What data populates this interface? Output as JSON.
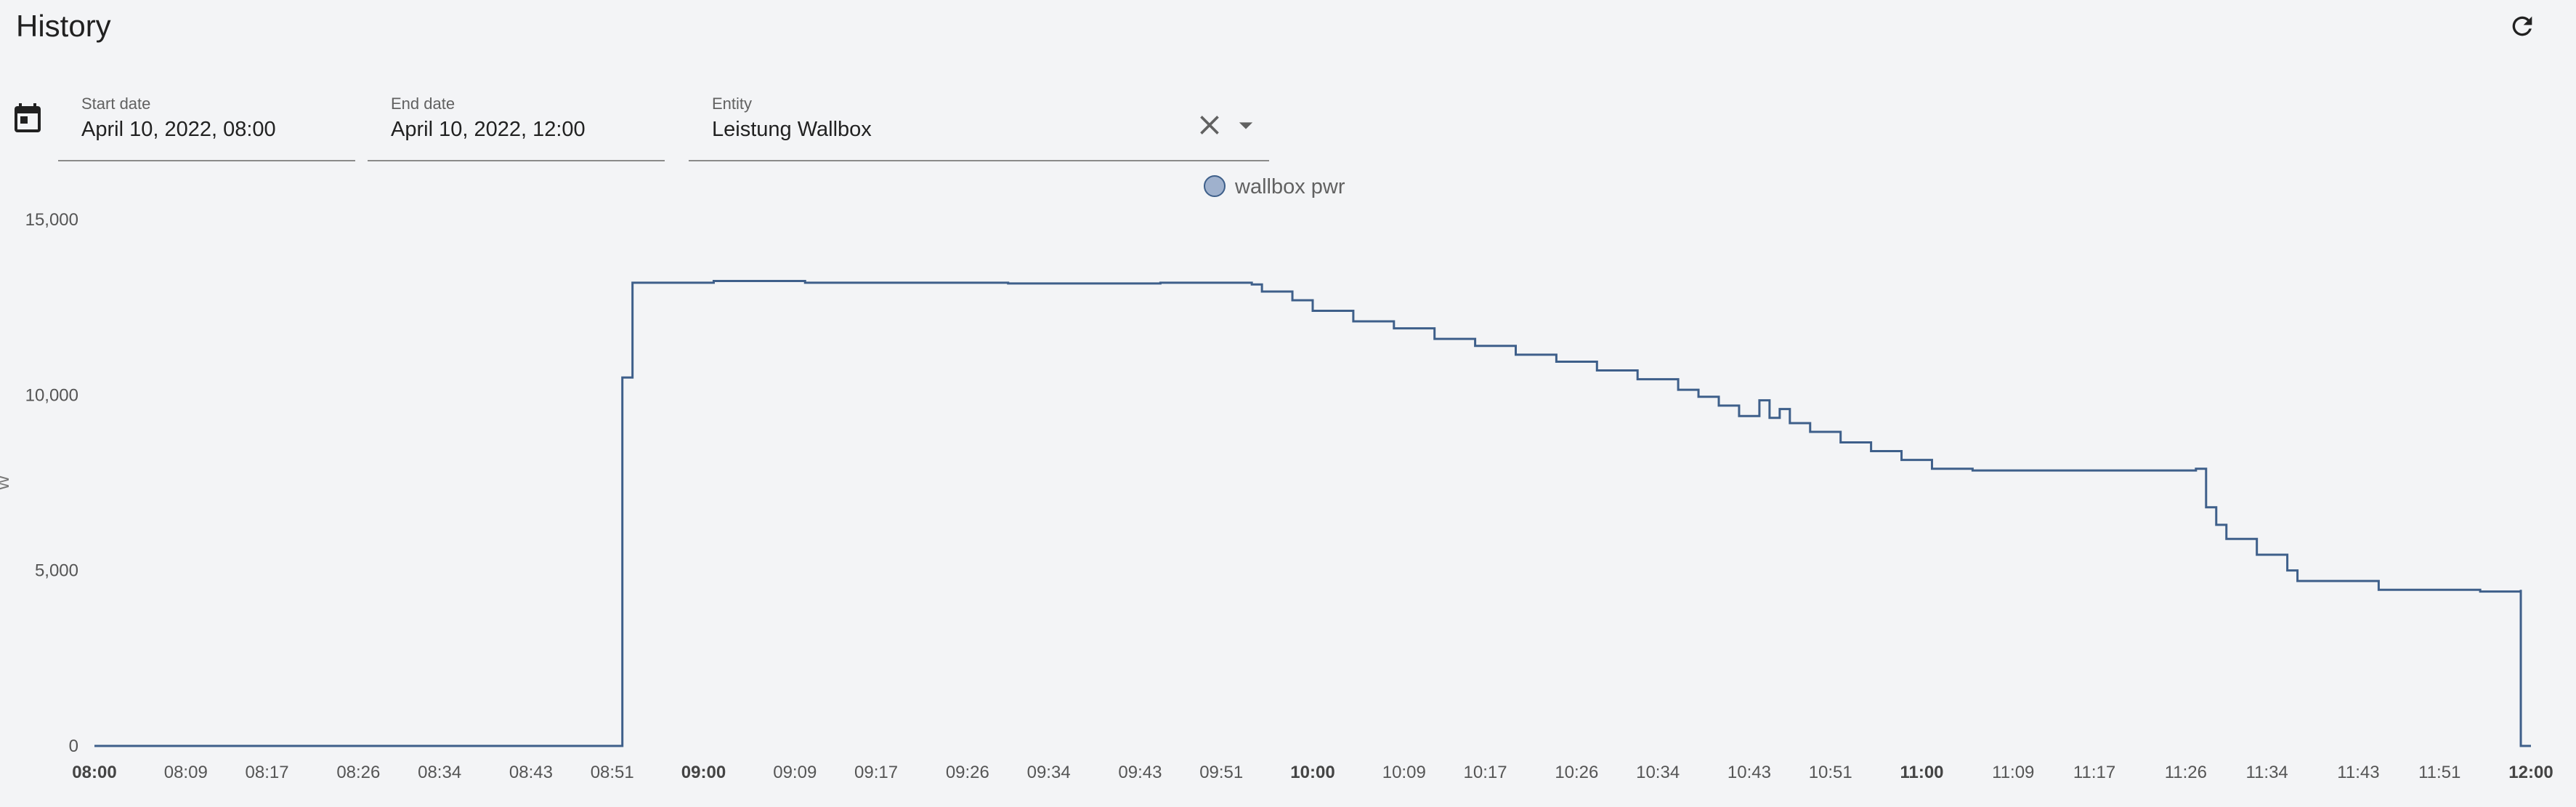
{
  "header": {
    "title": "History"
  },
  "filters": {
    "start_date": {
      "label": "Start date",
      "value": "April 10, 2022, 08:00"
    },
    "end_date": {
      "label": "End date",
      "value": "April 10, 2022, 12:00"
    },
    "entity": {
      "label": "Entity",
      "value": "Leistung Wallbox"
    }
  },
  "icons": {
    "refresh": "refresh-icon",
    "calendar": "calendar-icon",
    "clear": "close-icon",
    "dropdown": "chevron-down-icon"
  },
  "colors": {
    "series": "#3e5f8a",
    "legend_dot_fill": "#9fb1cd",
    "legend_dot_stroke": "#3e5f8a"
  },
  "chart_data": {
    "type": "line",
    "legend": [
      "wallbox pwr"
    ],
    "legend_position": "top-center",
    "ylabel": "W",
    "ylim": [
      0,
      15000
    ],
    "y_ticks": [
      "0",
      "5,000",
      "10,000",
      "15,000"
    ],
    "x_ticks": [
      "08:00",
      "08:09",
      "08:17",
      "08:26",
      "08:34",
      "08:43",
      "08:51",
      "09:00",
      "09:09",
      "09:17",
      "09:26",
      "09:34",
      "09:43",
      "09:51",
      "10:00",
      "10:09",
      "10:17",
      "10:26",
      "10:34",
      "10:43",
      "10:51",
      "11:00",
      "11:09",
      "11:17",
      "11:26",
      "11:34",
      "11:43",
      "11:51",
      "12:00"
    ],
    "x_ticks_bold": [
      "08:00",
      "09:00",
      "10:00",
      "11:00",
      "12:00"
    ],
    "grid": false,
    "step": true,
    "series": [
      {
        "name": "wallbox pwr",
        "points": [
          [
            "08:00",
            0
          ],
          [
            "08:52",
            0
          ],
          [
            "08:52",
            10500
          ],
          [
            "08:53",
            10500
          ],
          [
            "08:53",
            13200
          ],
          [
            "09:00",
            13200
          ],
          [
            "09:01",
            13250
          ],
          [
            "09:10",
            13200
          ],
          [
            "09:30",
            13180
          ],
          [
            "09:45",
            13200
          ],
          [
            "09:53",
            13200
          ],
          [
            "09:54",
            13150
          ],
          [
            "09:55",
            12950
          ],
          [
            "09:58",
            12700
          ],
          [
            "10:00",
            12400
          ],
          [
            "10:04",
            12100
          ],
          [
            "10:08",
            11900
          ],
          [
            "10:12",
            11600
          ],
          [
            "10:16",
            11400
          ],
          [
            "10:20",
            11150
          ],
          [
            "10:24",
            10950
          ],
          [
            "10:28",
            10700
          ],
          [
            "10:32",
            10450
          ],
          [
            "10:36",
            10150
          ],
          [
            "10:38",
            9950
          ],
          [
            "10:40",
            9700
          ],
          [
            "10:42",
            9400
          ],
          [
            "10:44",
            9850
          ],
          [
            "10:45",
            9350
          ],
          [
            "10:46",
            9600
          ],
          [
            "10:47",
            9200
          ],
          [
            "10:49",
            8950
          ],
          [
            "10:52",
            8650
          ],
          [
            "10:55",
            8400
          ],
          [
            "10:58",
            8150
          ],
          [
            "11:01",
            7900
          ],
          [
            "11:05",
            7850
          ],
          [
            "11:20",
            7850
          ],
          [
            "11:27",
            7900
          ],
          [
            "11:28",
            6800
          ],
          [
            "11:29",
            6300
          ],
          [
            "11:30",
            5900
          ],
          [
            "11:33",
            5450
          ],
          [
            "11:36",
            5000
          ],
          [
            "11:37",
            4700
          ],
          [
            "11:45",
            4450
          ],
          [
            "11:55",
            4400
          ],
          [
            "11:59",
            4450
          ],
          [
            "11:59",
            0
          ],
          [
            "12:00",
            0
          ]
        ]
      }
    ]
  }
}
